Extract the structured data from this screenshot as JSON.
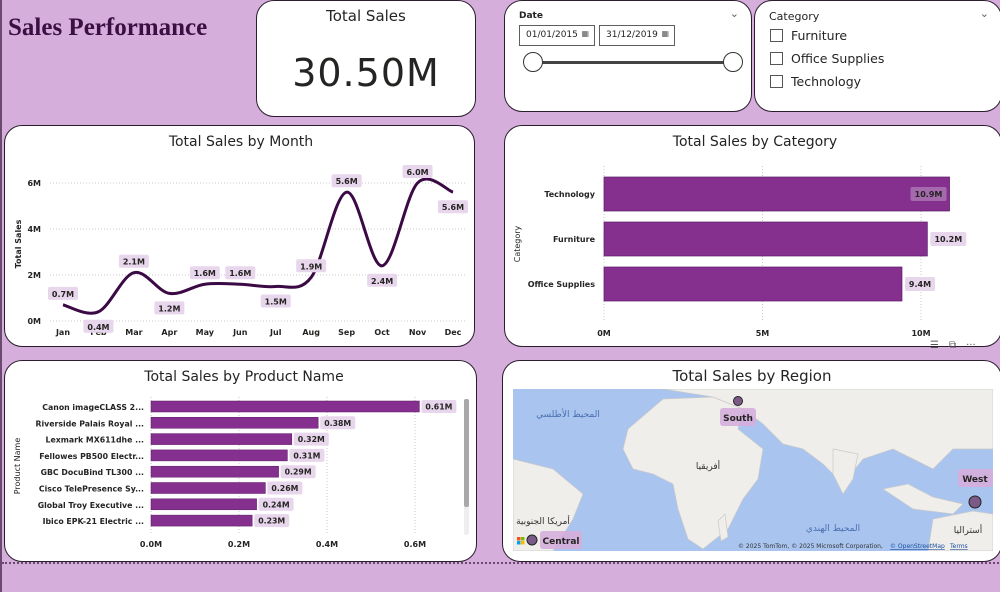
{
  "page": {
    "title": "Sales Performance",
    "background_color": "#d5aedb",
    "accent_color": "#85308f",
    "line_color": "#3b0a45",
    "label_bg_color": "#e8d6ec"
  },
  "kpi": {
    "label": "Total Sales",
    "value": "30.50M"
  },
  "date_slicer": {
    "header": "Date",
    "start": "01/01/2015",
    "end": "31/12/2019",
    "range_fraction": [
      0,
      1
    ],
    "icons": {
      "calendar": "calendar-icon",
      "expand": "chevron-down-icon"
    }
  },
  "category_slicer": {
    "header": "Category",
    "options": [
      {
        "label": "Furniture",
        "checked": false
      },
      {
        "label": "Office Supplies",
        "checked": false
      },
      {
        "label": "Technology",
        "checked": false
      }
    ]
  },
  "visual_toolbar": {
    "icons": [
      "filter-icon",
      "focus-mode-icon",
      "more-options-icon"
    ],
    "more_label": "···"
  },
  "region_map": {
    "title": "Total Sales by Region",
    "regions": [
      "South",
      "West",
      "Central"
    ],
    "map_labels": [
      "المحيط الأطلسي",
      "أفريقيا",
      "أمريكا الجنوبية",
      "المحيط الهندي",
      "أستراليا"
    ],
    "attribution": "© 2025 TomTom, © 2025 Microsoft Corporation,",
    "attribution_link": "© OpenStreetMap",
    "terms": "Terms"
  },
  "chart_data": [
    {
      "type": "line",
      "title": "Total Sales by Month",
      "xlabel": "",
      "ylabel": "Total Sales",
      "categories": [
        "Jan",
        "Feb",
        "Mar",
        "Apr",
        "May",
        "Jun",
        "Jul",
        "Aug",
        "Sep",
        "Oct",
        "Nov",
        "Dec"
      ],
      "values": [
        0.7,
        0.4,
        2.1,
        1.2,
        1.6,
        1.6,
        1.5,
        1.9,
        5.6,
        2.4,
        6.0,
        5.6
      ],
      "data_labels": [
        "0.7M",
        "0.4M",
        "2.1M",
        "1.2M",
        "1.6M",
        "1.6M",
        "1.5M",
        "1.9M",
        "5.6M",
        "2.4M",
        "6.0M",
        "5.6M"
      ],
      "units": "millions",
      "ylim": [
        0,
        6
      ],
      "yticks": [
        "0M",
        "2M",
        "4M",
        "6M"
      ],
      "yticks_values": [
        0,
        2,
        4,
        6
      ],
      "grid": true
    },
    {
      "type": "bar",
      "orientation": "horizontal",
      "title": "Total Sales by Category",
      "xlabel": "",
      "ylabel": "Category",
      "categories": [
        "Technology",
        "Furniture",
        "Office Supplies"
      ],
      "values": [
        10.9,
        10.2,
        9.4
      ],
      "data_labels": [
        "10.9M",
        "10.2M",
        "9.4M"
      ],
      "units": "millions",
      "xlim": [
        0,
        11.5
      ],
      "xticks": [
        "0M",
        "5M",
        "10M"
      ],
      "xticks_values": [
        0,
        5,
        10
      ],
      "grid": true
    },
    {
      "type": "bar",
      "orientation": "horizontal",
      "title": "Total Sales by Product Name",
      "xlabel": "",
      "ylabel": "Product Name",
      "categories": [
        "Canon imageCLASS 2...",
        "Riverside Palais Royal ...",
        "Lexmark MX611dhe ...",
        "Fellowes PB500 Electr...",
        "GBC DocuBind TL300 ...",
        "Cisco TelePresence Sy...",
        "Global Troy Executive ...",
        "Ibico EPK-21 Electric ..."
      ],
      "values": [
        0.61,
        0.38,
        0.32,
        0.31,
        0.29,
        0.26,
        0.24,
        0.23
      ],
      "data_labels": [
        "0.61M",
        "0.38M",
        "0.32M",
        "0.31M",
        "0.29M",
        "0.26M",
        "0.24M",
        "0.23M"
      ],
      "units": "millions",
      "xlim": [
        0,
        0.7
      ],
      "xticks": [
        "0.0M",
        "0.2M",
        "0.4M",
        "0.6M"
      ],
      "xticks_values": [
        0,
        0.2,
        0.4,
        0.6
      ],
      "grid": true
    }
  ]
}
